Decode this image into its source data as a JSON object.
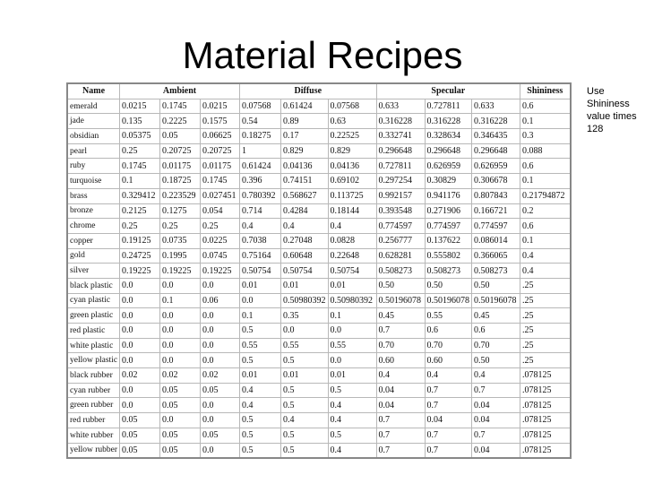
{
  "title": "Material Recipes",
  "note": "Use Shininess value times 128",
  "table": {
    "headers": [
      "Name",
      "Ambient",
      "Diffuse",
      "Specular",
      "Shininess"
    ],
    "rows": [
      [
        "emerald",
        "0.0215",
        "0.1745",
        "0.0215",
        "0.07568",
        "0.61424",
        "0.07568",
        "0.633",
        "0.727811",
        "0.633",
        "0.6"
      ],
      [
        "jade",
        "0.135",
        "0.2225",
        "0.1575",
        "0.54",
        "0.89",
        "0.63",
        "0.316228",
        "0.316228",
        "0.316228",
        "0.1"
      ],
      [
        "obsidian",
        "0.05375",
        "0.05",
        "0.06625",
        "0.18275",
        "0.17",
        "0.22525",
        "0.332741",
        "0.328634",
        "0.346435",
        "0.3"
      ],
      [
        "pearl",
        "0.25",
        "0.20725",
        "0.20725",
        "1",
        "0.829",
        "0.829",
        "0.296648",
        "0.296648",
        "0.296648",
        "0.088"
      ],
      [
        "ruby",
        "0.1745",
        "0.01175",
        "0.01175",
        "0.61424",
        "0.04136",
        "0.04136",
        "0.727811",
        "0.626959",
        "0.626959",
        "0.6"
      ],
      [
        "turquoise",
        "0.1",
        "0.18725",
        "0.1745",
        "0.396",
        "0.74151",
        "0.69102",
        "0.297254",
        "0.30829",
        "0.306678",
        "0.1"
      ],
      [
        "brass",
        "0.329412",
        "0.223529",
        "0.027451",
        "0.780392",
        "0.568627",
        "0.113725",
        "0.992157",
        "0.941176",
        "0.807843",
        "0.21794872"
      ],
      [
        "bronze",
        "0.2125",
        "0.1275",
        "0.054",
        "0.714",
        "0.4284",
        "0.18144",
        "0.393548",
        "0.271906",
        "0.166721",
        "0.2"
      ],
      [
        "chrome",
        "0.25",
        "0.25",
        "0.25",
        "0.4",
        "0.4",
        "0.4",
        "0.774597",
        "0.774597",
        "0.774597",
        "0.6"
      ],
      [
        "copper",
        "0.19125",
        "0.0735",
        "0.0225",
        "0.7038",
        "0.27048",
        "0.0828",
        "0.256777",
        "0.137622",
        "0.086014",
        "0.1"
      ],
      [
        "gold",
        "0.24725",
        "0.1995",
        "0.0745",
        "0.75164",
        "0.60648",
        "0.22648",
        "0.628281",
        "0.555802",
        "0.366065",
        "0.4"
      ],
      [
        "silver",
        "0.19225",
        "0.19225",
        "0.19225",
        "0.50754",
        "0.50754",
        "0.50754",
        "0.508273",
        "0.508273",
        "0.508273",
        "0.4"
      ],
      [
        "black plastic",
        "0.0",
        "0.0",
        "0.0",
        "0.01",
        "0.01",
        "0.01",
        "0.50",
        "0.50",
        "0.50",
        ".25"
      ],
      [
        "cyan plastic",
        "0.0",
        "0.1",
        "0.06",
        "0.0",
        "0.50980392",
        "0.50980392",
        "0.50196078",
        "0.50196078",
        "0.50196078",
        ".25"
      ],
      [
        "green plastic",
        "0.0",
        "0.0",
        "0.0",
        "0.1",
        "0.35",
        "0.1",
        "0.45",
        "0.55",
        "0.45",
        ".25"
      ],
      [
        "red plastic",
        "0.0",
        "0.0",
        "0.0",
        "0.5",
        "0.0",
        "0.0",
        "0.7",
        "0.6",
        "0.6",
        ".25"
      ],
      [
        "white plastic",
        "0.0",
        "0.0",
        "0.0",
        "0.55",
        "0.55",
        "0.55",
        "0.70",
        "0.70",
        "0.70",
        ".25"
      ],
      [
        "yellow plastic",
        "0.0",
        "0.0",
        "0.0",
        "0.5",
        "0.5",
        "0.0",
        "0.60",
        "0.60",
        "0.50",
        ".25"
      ],
      [
        "black rubber",
        "0.02",
        "0.02",
        "0.02",
        "0.01",
        "0.01",
        "0.01",
        "0.4",
        "0.4",
        "0.4",
        ".078125"
      ],
      [
        "cyan rubber",
        "0.0",
        "0.05",
        "0.05",
        "0.4",
        "0.5",
        "0.5",
        "0.04",
        "0.7",
        "0.7",
        ".078125"
      ],
      [
        "green rubber",
        "0.0",
        "0.05",
        "0.0",
        "0.4",
        "0.5",
        "0.4",
        "0.04",
        "0.7",
        "0.04",
        ".078125"
      ],
      [
        "red rubber",
        "0.05",
        "0.0",
        "0.0",
        "0.5",
        "0.4",
        "0.4",
        "0.7",
        "0.04",
        "0.04",
        ".078125"
      ],
      [
        "white rubber",
        "0.05",
        "0.05",
        "0.05",
        "0.5",
        "0.5",
        "0.5",
        "0.7",
        "0.7",
        "0.7",
        ".078125"
      ],
      [
        "yellow rubber",
        "0.05",
        "0.05",
        "0.0",
        "0.5",
        "0.5",
        "0.4",
        "0.7",
        "0.7",
        "0.04",
        ".078125"
      ]
    ]
  }
}
